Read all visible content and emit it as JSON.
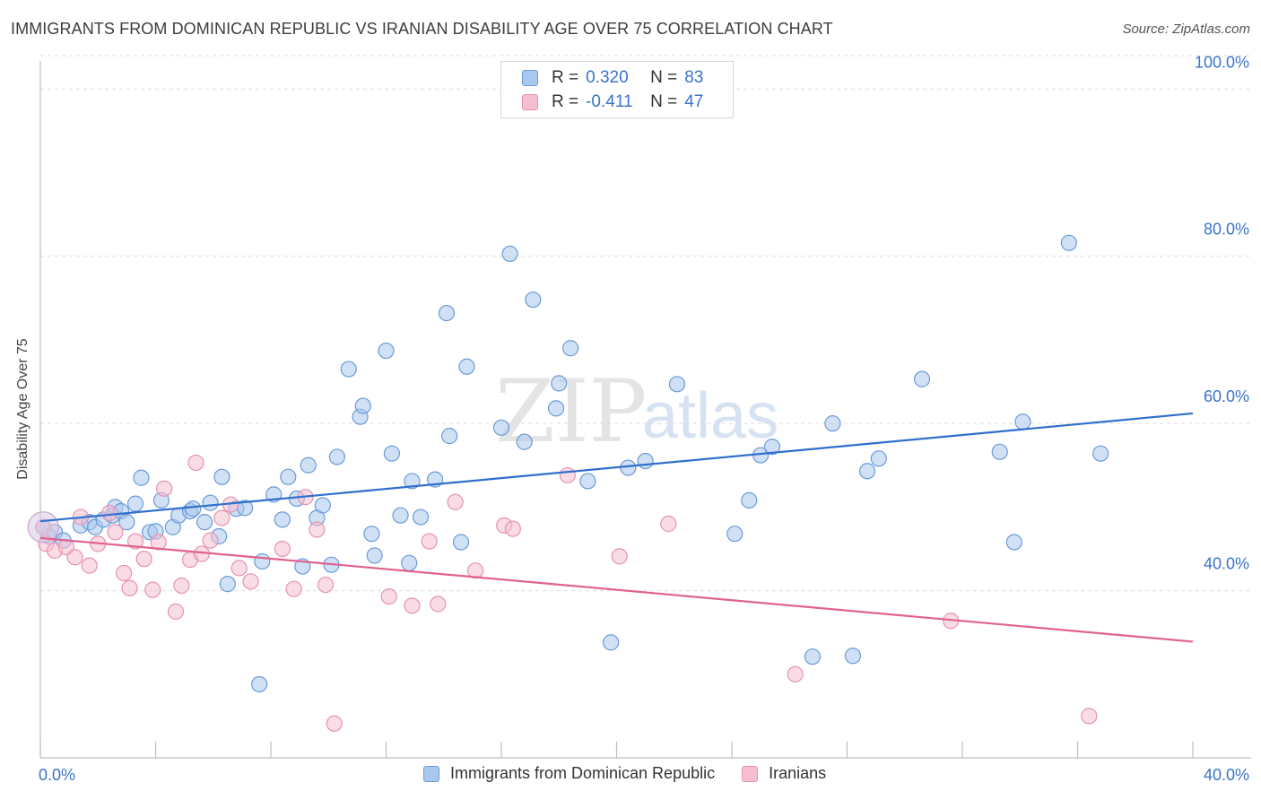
{
  "header": {
    "title": "IMMIGRANTS FROM DOMINICAN REPUBLIC VS IRANIAN DISABILITY AGE OVER 75 CORRELATION CHART",
    "source": "Source: ZipAtlas.com"
  },
  "watermark": {
    "zip": "ZIP",
    "atlas": "atlas"
  },
  "colors": {
    "blue_fill": "#a9c8ef",
    "blue_stroke": "#6a9bd8",
    "blue_line": "#2f6fce",
    "pink_fill": "#f5bfd0",
    "pink_stroke": "#e693b0",
    "pink_line": "#e0628f",
    "axis_text": "#3a73c8",
    "grid": "#dcdcdc"
  },
  "legend": {
    "rows": [
      {
        "r_label": "R =",
        "r_value": "0.320",
        "n_label": "N =",
        "n_value": "83"
      },
      {
        "r_label": "R =",
        "r_value": "-0.411",
        "n_label": "N =",
        "n_value": "47"
      }
    ]
  },
  "bottom_legend": {
    "series1": "Immigrants from Dominican Republic",
    "series2": "Iranians"
  },
  "chart_data": {
    "type": "scatter",
    "title": "IMMIGRANTS FROM DOMINICAN REPUBLIC VS IRANIAN DISABILITY AGE OVER 75 CORRELATION CHART",
    "xlabel": "",
    "ylabel": "Disability Age Over 75",
    "xlim": [
      0,
      40
    ],
    "ylim": [
      20,
      104
    ],
    "x_tick_labels": [
      {
        "value": 0,
        "label": "0.0%"
      },
      {
        "value": 40,
        "label": "40.0%"
      }
    ],
    "y_tick_labels": [
      {
        "value": 40,
        "label": "40.0%"
      },
      {
        "value": 60,
        "label": "60.0%"
      },
      {
        "value": 80,
        "label": "80.0%"
      },
      {
        "value": 100,
        "label": "100.0%"
      }
    ],
    "series": [
      {
        "name": "Immigrants from Dominican Republic",
        "color": "#a9c8ef",
        "trend": {
          "x": [
            0,
            40
          ],
          "y": [
            48.3,
            61.2
          ]
        },
        "points": [
          [
            0.1,
            47.6
          ],
          [
            0.3,
            46.5
          ],
          [
            0.5,
            47.0
          ],
          [
            0.8,
            46.0
          ],
          [
            1.4,
            47.8
          ],
          [
            1.7,
            48.2
          ],
          [
            1.9,
            47.6
          ],
          [
            2.2,
            48.5
          ],
          [
            2.5,
            49.0
          ],
          [
            2.6,
            50.0
          ],
          [
            2.8,
            49.5
          ],
          [
            3.0,
            48.2
          ],
          [
            3.3,
            50.4
          ],
          [
            3.5,
            53.5
          ],
          [
            3.8,
            47.0
          ],
          [
            4.0,
            47.1
          ],
          [
            4.2,
            50.8
          ],
          [
            4.6,
            47.6
          ],
          [
            4.8,
            49.0
          ],
          [
            5.2,
            49.5
          ],
          [
            5.3,
            49.8
          ],
          [
            5.7,
            48.2
          ],
          [
            5.9,
            50.5
          ],
          [
            6.2,
            46.5
          ],
          [
            6.3,
            53.6
          ],
          [
            6.5,
            40.8
          ],
          [
            6.8,
            49.8
          ],
          [
            7.1,
            49.9
          ],
          [
            7.6,
            28.8
          ],
          [
            7.7,
            43.5
          ],
          [
            8.1,
            51.5
          ],
          [
            8.4,
            48.5
          ],
          [
            8.6,
            53.6
          ],
          [
            8.9,
            51.0
          ],
          [
            9.1,
            42.9
          ],
          [
            9.3,
            55.0
          ],
          [
            9.6,
            48.7
          ],
          [
            9.8,
            50.2
          ],
          [
            10.1,
            43.1
          ],
          [
            10.3,
            56.0
          ],
          [
            10.7,
            66.5
          ],
          [
            11.1,
            60.8
          ],
          [
            11.2,
            62.1
          ],
          [
            11.5,
            46.8
          ],
          [
            11.6,
            44.2
          ],
          [
            12.0,
            68.7
          ],
          [
            12.2,
            56.4
          ],
          [
            12.5,
            49.0
          ],
          [
            12.8,
            43.3
          ],
          [
            12.9,
            53.1
          ],
          [
            13.2,
            48.8
          ],
          [
            13.7,
            53.3
          ],
          [
            14.1,
            73.2
          ],
          [
            14.2,
            58.5
          ],
          [
            14.6,
            45.8
          ],
          [
            14.8,
            66.8
          ],
          [
            16.0,
            59.5
          ],
          [
            16.3,
            80.3
          ],
          [
            16.8,
            57.8
          ],
          [
            17.1,
            74.8
          ],
          [
            17.9,
            61.8
          ],
          [
            18.0,
            64.8
          ],
          [
            18.4,
            69.0
          ],
          [
            19.0,
            53.1
          ],
          [
            19.8,
            33.8
          ],
          [
            20.4,
            54.7
          ],
          [
            21.0,
            55.5
          ],
          [
            22.1,
            64.7
          ],
          [
            24.1,
            46.8
          ],
          [
            24.6,
            50.8
          ],
          [
            25.0,
            56.2
          ],
          [
            25.4,
            57.2
          ],
          [
            26.8,
            32.1
          ],
          [
            27.5,
            60.0
          ],
          [
            28.2,
            32.2
          ],
          [
            28.7,
            54.3
          ],
          [
            29.1,
            55.8
          ],
          [
            30.6,
            65.3
          ],
          [
            33.3,
            56.6
          ],
          [
            33.8,
            45.8
          ],
          [
            34.1,
            60.2
          ],
          [
            35.7,
            81.6
          ],
          [
            36.8,
            56.4
          ]
        ]
      },
      {
        "name": "Iranians",
        "color": "#f5bfd0",
        "trend": {
          "x": [
            0,
            40
          ],
          "y": [
            46.3,
            33.9
          ]
        },
        "points": [
          [
            0.1,
            47.6
          ],
          [
            0.2,
            45.6
          ],
          [
            0.5,
            44.8
          ],
          [
            0.9,
            45.2
          ],
          [
            1.2,
            44.0
          ],
          [
            1.4,
            48.8
          ],
          [
            1.7,
            43.0
          ],
          [
            2.0,
            45.6
          ],
          [
            2.4,
            49.3
          ],
          [
            2.6,
            47.0
          ],
          [
            2.9,
            42.1
          ],
          [
            3.1,
            40.3
          ],
          [
            3.3,
            45.9
          ],
          [
            3.6,
            43.8
          ],
          [
            3.9,
            40.1
          ],
          [
            4.1,
            45.8
          ],
          [
            4.3,
            52.2
          ],
          [
            4.7,
            37.5
          ],
          [
            4.9,
            40.6
          ],
          [
            5.2,
            43.7
          ],
          [
            5.4,
            55.3
          ],
          [
            5.6,
            44.4
          ],
          [
            5.9,
            46.0
          ],
          [
            6.3,
            48.7
          ],
          [
            6.6,
            50.3
          ],
          [
            6.9,
            42.7
          ],
          [
            7.3,
            41.1
          ],
          [
            8.4,
            45.0
          ],
          [
            8.8,
            40.2
          ],
          [
            9.2,
            51.2
          ],
          [
            9.6,
            47.3
          ],
          [
            9.9,
            40.7
          ],
          [
            10.2,
            24.1
          ],
          [
            12.1,
            39.3
          ],
          [
            12.9,
            38.2
          ],
          [
            13.5,
            45.9
          ],
          [
            13.8,
            38.4
          ],
          [
            14.4,
            50.6
          ],
          [
            15.1,
            42.4
          ],
          [
            16.1,
            47.8
          ],
          [
            16.4,
            47.4
          ],
          [
            18.3,
            53.8
          ],
          [
            20.1,
            44.1
          ],
          [
            21.8,
            48.0
          ],
          [
            26.2,
            30.0
          ],
          [
            31.6,
            36.4
          ],
          [
            36.4,
            25.0
          ]
        ]
      }
    ]
  }
}
